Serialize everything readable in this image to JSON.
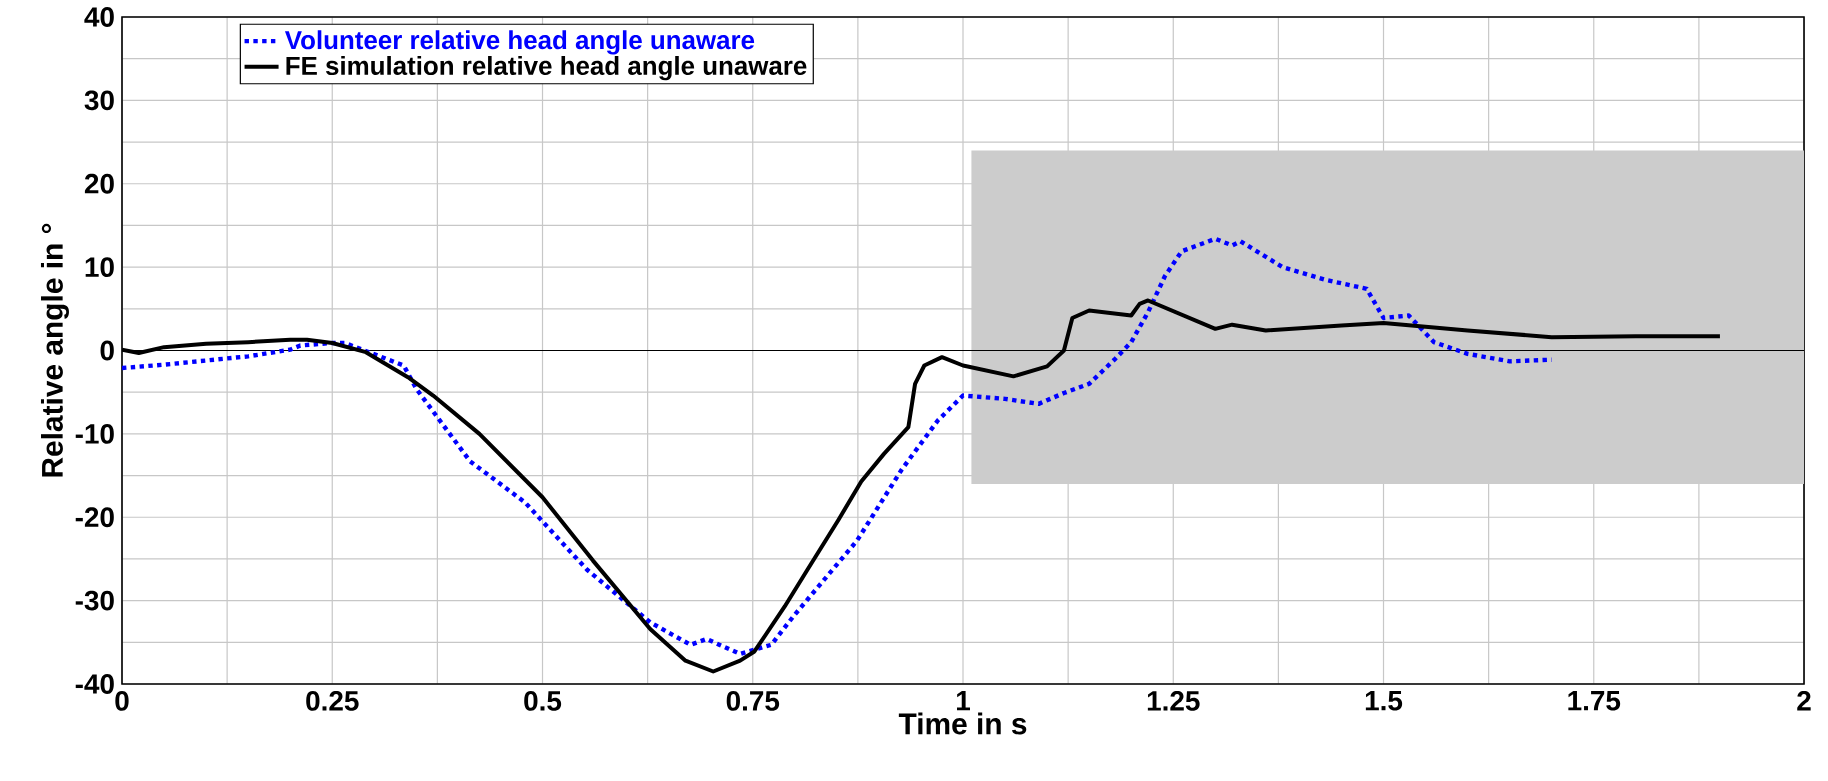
{
  "chart_data": {
    "type": "line",
    "xlabel": "Time in s",
    "ylabel": "Relative angle in °",
    "xlim": [
      0,
      2
    ],
    "ylim": [
      -40,
      40
    ],
    "xticks": [
      0,
      0.25,
      0.5,
      0.75,
      1,
      1.25,
      1.5,
      1.75,
      2
    ],
    "yticks": [
      -40,
      -30,
      -20,
      -10,
      0,
      10,
      20,
      30,
      40
    ],
    "grid": true,
    "legend": "top left",
    "ref_lines": [
      {
        "axis": "y",
        "value": 0,
        "color": "#000000"
      }
    ],
    "bands": [
      {
        "axis": "x",
        "from": 1.01,
        "to": 2,
        "color": "#cccccc"
      }
    ],
    "series": [
      {
        "name": "Volunteer relative head angle unaware",
        "color": "#0000ff",
        "line_style": "dotted",
        "x": [
          0,
          0.05,
          0.1,
          0.15,
          0.2,
          0.212,
          0.25,
          0.265,
          0.335,
          0.35,
          0.414,
          0.479,
          0.553,
          0.628,
          0.676,
          0.695,
          0.735,
          0.772,
          0.799,
          0.874,
          0.927,
          0.97,
          1.0,
          1.05,
          1.09,
          1.12,
          1.15,
          1.18,
          1.2,
          1.22,
          1.24,
          1.26,
          1.3,
          1.32,
          1.33,
          1.38,
          1.43,
          1.48,
          1.5,
          1.53,
          1.56,
          1.6,
          1.65,
          1.7
        ],
        "values": [
          -2.1,
          -1.7,
          -1.2,
          -0.7,
          0.1,
          0.6,
          0.9,
          0.9,
          -1.8,
          -4.6,
          -13.3,
          -18.2,
          -26.3,
          -32.6,
          -35.3,
          -34.6,
          -36.4,
          -35.3,
          -31.8,
          -22.8,
          -14.3,
          -8.4,
          -5.4,
          -5.8,
          -6.4,
          -5.1,
          -4,
          -1.1,
          1,
          4.6,
          8.9,
          11.9,
          13.4,
          12.6,
          13.1,
          10,
          8.5,
          7.4,
          3.9,
          4.2,
          1,
          -0.4,
          -1.3,
          -1.1
        ]
      },
      {
        "name": "FE simulation relative head angle unaware",
        "color": "#000000",
        "line_style": "solid",
        "x": [
          0,
          0.02,
          0.05,
          0.1,
          0.15,
          0.2,
          0.22,
          0.25,
          0.29,
          0.34,
          0.37,
          0.425,
          0.5,
          0.56,
          0.628,
          0.67,
          0.703,
          0.735,
          0.752,
          0.788,
          0.815,
          0.852,
          0.879,
          0.906,
          0.935,
          0.943,
          0.954,
          0.975,
          1.0,
          1.06,
          1.1,
          1.12,
          1.13,
          1.15,
          1.2,
          1.21,
          1.22,
          1.3,
          1.32,
          1.36,
          1.45,
          1.5,
          1.6,
          1.7,
          1.8,
          1.9
        ],
        "values": [
          0.1,
          -0.3,
          0.4,
          0.8,
          1.0,
          1.3,
          1.3,
          0.9,
          -0.2,
          -3.2,
          -5.4,
          -10,
          -17.6,
          -25.2,
          -33.4,
          -37.2,
          -38.5,
          -37.2,
          -36.1,
          -30.7,
          -26.3,
          -20.3,
          -15.7,
          -12.4,
          -9.2,
          -4,
          -1.8,
          -0.8,
          -1.8,
          -3.1,
          -1.9,
          0,
          3.9,
          4.8,
          4.2,
          5.6,
          6,
          2.6,
          3.1,
          2.4,
          3,
          3.3,
          2.4,
          1.6,
          1.7,
          1.7
        ]
      }
    ]
  }
}
